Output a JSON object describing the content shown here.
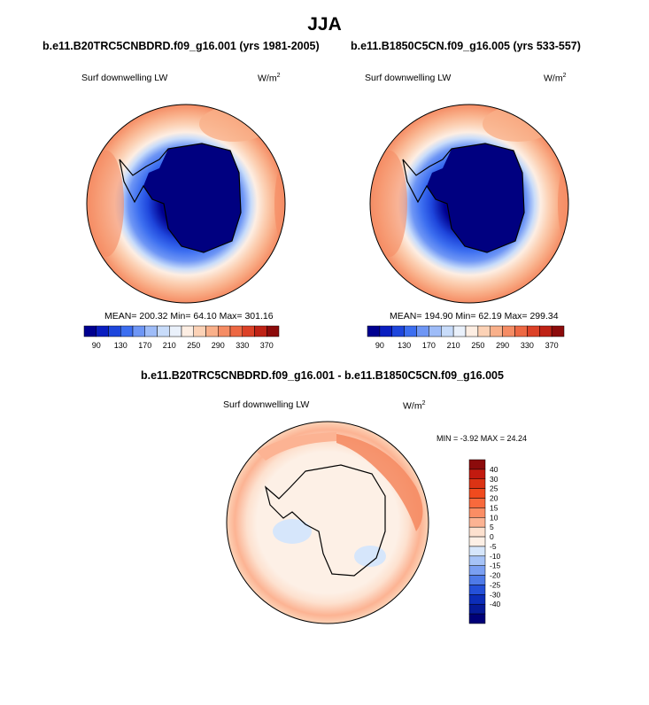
{
  "figure": {
    "season": "JJA",
    "panels": [
      {
        "title": "b.e11.B20TRC5CNBDRD.f09_g16.001 (yrs 1981-2005)",
        "variable": "Surf downwelling LW",
        "units": "W/m",
        "units_exp": "2",
        "stats": "MEAN= 200.32  Min=  64.10  Max= 301.16"
      },
      {
        "title": "b.e11.B1850C5CN.f09_g16.005 (yrs 533-557)",
        "variable": "Surf downwelling LW",
        "units": "W/m",
        "units_exp": "2",
        "stats": "MEAN= 194.90  Min=  62.19  Max= 299.34"
      }
    ],
    "difference": {
      "title": "b.e11.B20TRC5CNBDRD.f09_g16.001 - b.e11.B1850C5CN.f09_g16.005",
      "variable": "Surf downwelling LW",
      "units": "W/m",
      "units_exp": "2",
      "stats": "MIN =  -3.92 MAX =  24.24"
    }
  },
  "colorbar_horizontal": {
    "labels": [
      "90",
      "130",
      "170",
      "210",
      "250",
      "290",
      "330",
      "370"
    ],
    "colors": [
      "#000090",
      "#0a1ec0",
      "#1e46dc",
      "#3c6ef0",
      "#6e96f5",
      "#9ebcf8",
      "#c8dcfa",
      "#eaf1fb",
      "#fdeee3",
      "#fcd2b6",
      "#f9b08a",
      "#f58c64",
      "#ed6843",
      "#dc4127",
      "#bf2215",
      "#8c0b0b"
    ]
  },
  "colorbar_vertical": {
    "labels": [
      "40",
      "30",
      "25",
      "20",
      "15",
      "10",
      "5",
      "0",
      "-5",
      "-10",
      "-15",
      "-20",
      "-25",
      "-30",
      "-40"
    ],
    "colors": [
      "#8c0b0b",
      "#c21a0f",
      "#dc3314",
      "#f04a1e",
      "#f8693c",
      "#fb8d64",
      "#fcb393",
      "#fde1cf",
      "#fdf0e6",
      "#d6e6fb",
      "#a6c3f7",
      "#7a9ff2",
      "#4e7ae8",
      "#2450d8",
      "#0c2db8",
      "#061a98",
      "#000078"
    ]
  }
}
